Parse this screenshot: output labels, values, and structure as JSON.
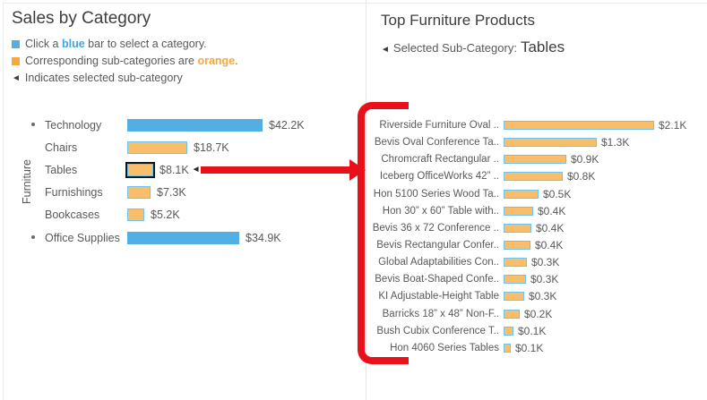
{
  "colors": {
    "blue_bar": "#53AEE4",
    "orange_bar": "#F8BE6B",
    "orange_bar_border": "#70C3EB",
    "blue_accent": "#41A3DE",
    "orange_accent": "#F5A93C",
    "selected_outline": "#141414",
    "red_annotation": "#E8111A",
    "label_text": "#595959",
    "title_text": "#3E3E3E",
    "divider": "#E7E7E7"
  },
  "left_panel": {
    "title": "Sales by Category",
    "legend": {
      "line1": {
        "text_before": "Click a ",
        "highlight": "blue",
        "text_after": " bar to select a category."
      },
      "line2": {
        "text_before": "Corresponding sub-categories are ",
        "highlight": "orange",
        "text_after": "."
      },
      "line3": {
        "marker": "◄",
        "text": "Indicates selected sub-category"
      }
    },
    "group_axis_label": "Furniture"
  },
  "right_panel": {
    "title": "Top Furniture Products",
    "subtitle_marker": "◄",
    "subtitle_text": "Selected Sub-Category:",
    "selected_value": "Tables"
  },
  "chart_data": [
    {
      "type": "bar",
      "title": "Sales by Category",
      "orientation": "horizontal",
      "unit": "USD thousands",
      "categories": [
        "Technology",
        "Chairs",
        "Tables",
        "Furnishings",
        "Bookcases",
        "Office Supplies"
      ],
      "values": [
        42.2,
        18.7,
        8.1,
        7.3,
        5.2,
        34.9
      ],
      "value_labels": [
        "$42.2K",
        "$18.7K",
        "$8.1K",
        "$7.3K",
        "$5.2K",
        "$34.9K"
      ],
      "bar_colors": [
        "blue",
        "orange",
        "orange",
        "orange",
        "orange",
        "blue"
      ],
      "selected_category": "Tables",
      "selected_marker": "◄",
      "expandable_rows": [
        "Technology",
        "Office Supplies"
      ],
      "group_label": "Furniture",
      "xlim": [
        0,
        45
      ],
      "grid": false,
      "legend_position": "above-chart"
    },
    {
      "type": "bar",
      "title": "Top Furniture Products",
      "orientation": "horizontal",
      "unit": "USD thousands",
      "categories": [
        "Riverside Furniture Oval ..",
        "Bevis Oval Conference Ta..",
        "Chromcraft Rectangular ..",
        "Iceberg OfficeWorks 42” ..",
        "Hon 5100 Series Wood Ta..",
        "Hon 30” x 60” Table with..",
        "Bevis 36 x 72 Conference ..",
        "Bevis Rectangular Confer..",
        "Global Adaptabilities Con..",
        "Bevis Boat-Shaped Confe..",
        "KI Adjustable-Height Table",
        "Barricks 18” x 48” Non-F..",
        "Bush Cubix Conference T..",
        "Hon 4060 Series Tables"
      ],
      "values": [
        2.1,
        1.3,
        0.88,
        0.83,
        0.49,
        0.41,
        0.39,
        0.38,
        0.33,
        0.31,
        0.29,
        0.23,
        0.14,
        0.1
      ],
      "value_labels": [
        "$2.1K",
        "$1.3K",
        "$0.9K",
        "$0.8K",
        "$0.5K",
        "$0.4K",
        "$0.4K",
        "$0.4K",
        "$0.3K",
        "$0.3K",
        "$0.3K",
        "$0.2K",
        "$0.1K",
        "$0.1K"
      ],
      "xlim": [
        0,
        2.2
      ],
      "grid": false
    }
  ]
}
